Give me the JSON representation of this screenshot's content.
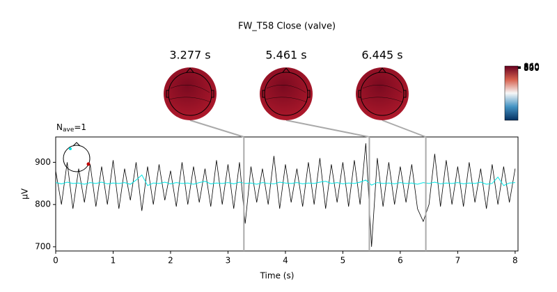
{
  "chart_data": {
    "type": "line",
    "title": "FW_T58 Close (valve)",
    "nave_label": {
      "base": "N",
      "sub": "ave",
      "suffix": "=1"
    },
    "xlabel": "Time (s)",
    "ylabel": "µV",
    "xlim": [
      0,
      8.05
    ],
    "ylim": [
      690,
      960
    ],
    "xticks": [
      0,
      1,
      2,
      3,
      4,
      5,
      6,
      7,
      8
    ],
    "yticks": [
      700,
      800,
      900
    ],
    "topomap_times": [
      {
        "value": 3.277,
        "label": "3.277 s"
      },
      {
        "value": 5.461,
        "label": "5.461 s"
      },
      {
        "value": 6.445,
        "label": "6.445 s"
      }
    ],
    "colorbar": {
      "clim": [
        -880,
        880
      ],
      "ticks": [
        800,
        820,
        840,
        860
      ]
    },
    "x": [
      0,
      0.1,
      0.2,
      0.3,
      0.4,
      0.5,
      0.6,
      0.7,
      0.8,
      0.9,
      1,
      1.1,
      1.2,
      1.3,
      1.4,
      1.5,
      1.6,
      1.7,
      1.8,
      1.9,
      2,
      2.1,
      2.2,
      2.3,
      2.4,
      2.5,
      2.6,
      2.7,
      2.8,
      2.9,
      3,
      3.1,
      3.2,
      3.3,
      3.4,
      3.5,
      3.6,
      3.7,
      3.8,
      3.9,
      4,
      4.1,
      4.2,
      4.3,
      4.4,
      4.5,
      4.6,
      4.7,
      4.8,
      4.9,
      5,
      5.1,
      5.2,
      5.3,
      5.4,
      5.5,
      5.6,
      5.7,
      5.8,
      5.9,
      6,
      6.1,
      6.2,
      6.3,
      6.4,
      6.5,
      6.6,
      6.7,
      6.8,
      6.9,
      7,
      7.1,
      7.2,
      7.3,
      7.4,
      7.5,
      7.6,
      7.7,
      7.8,
      7.9,
      8
    ],
    "series": [
      {
        "color": "#000000",
        "values": [
          880,
          800,
          900,
          790,
          885,
          805,
          895,
          795,
          890,
          800,
          905,
          790,
          885,
          810,
          900,
          785,
          890,
          800,
          895,
          810,
          880,
          795,
          900,
          800,
          890,
          805,
          885,
          795,
          905,
          800,
          895,
          790,
          900,
          755,
          890,
          805,
          885,
          800,
          915,
          790,
          895,
          805,
          885,
          795,
          900,
          800,
          910,
          790,
          895,
          805,
          900,
          795,
          905,
          800,
          945,
          700,
          910,
          795,
          900,
          800,
          890,
          805,
          895,
          790,
          760,
          800,
          920,
          795,
          905,
          800,
          890,
          795,
          900,
          805,
          885,
          790,
          895,
          800,
          890,
          805,
          885
        ]
      },
      {
        "color": "#00e5e5",
        "values": [
          852,
          849,
          853,
          850,
          851,
          848,
          852,
          850,
          853,
          849,
          851,
          850,
          852,
          848,
          858,
          870,
          845,
          851,
          850,
          853,
          849,
          852,
          850,
          851,
          848,
          852,
          855,
          849,
          851,
          850,
          852,
          849,
          853,
          850,
          851,
          848,
          852,
          850,
          849,
          853,
          851,
          850,
          852,
          849,
          851,
          850,
          853,
          855,
          850,
          852,
          849,
          851,
          850,
          853,
          858,
          846,
          852,
          850,
          851,
          849,
          852,
          850,
          851,
          848,
          852,
          850,
          853,
          849,
          851,
          850,
          852,
          849,
          851,
          850,
          853,
          848,
          850,
          865,
          845,
          851,
          852
        ]
      }
    ]
  }
}
